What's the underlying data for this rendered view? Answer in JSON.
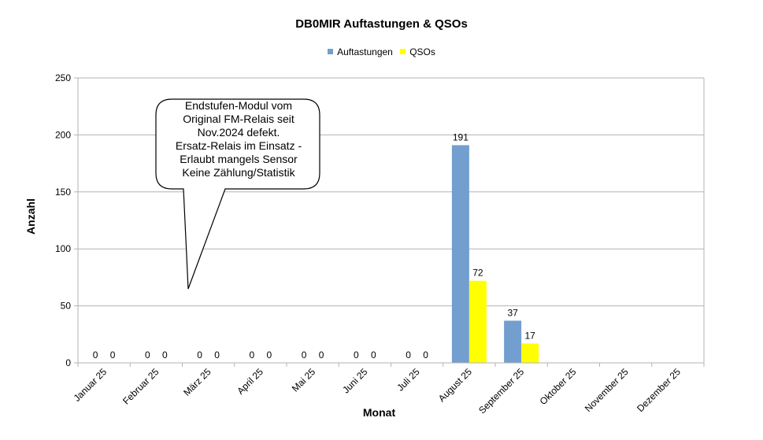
{
  "chart_data": {
    "type": "bar",
    "title": "DB0MIR Auftastungen & QSOs",
    "xlabel": "Monat",
    "ylabel": "Anzahl",
    "ylim": [
      0,
      250
    ],
    "yticks": [
      0,
      50,
      100,
      150,
      200,
      250
    ],
    "grid": true,
    "legend_position": "top",
    "categories": [
      "Januar 25",
      "Februar 25",
      "März 25",
      "April 25",
      "Mai 25",
      "Juni 25",
      "Juli 25",
      "August 25",
      "September 25",
      "Oktober 25",
      "November 25",
      "Dezember 25"
    ],
    "series": [
      {
        "name": "Auftastungen",
        "color": "#729fcf",
        "values": [
          0,
          0,
          0,
          0,
          0,
          0,
          0,
          191,
          37,
          null,
          null,
          null
        ]
      },
      {
        "name": "QSOs",
        "color": "#ffff00",
        "values": [
          0,
          0,
          0,
          0,
          0,
          0,
          0,
          72,
          17,
          null,
          null,
          null
        ]
      }
    ],
    "annotation": {
      "lines": [
        "Endstufen-Modul vom",
        "Original FM-Relais seit",
        "Nov.2024 defekt.",
        "Ersatz-Relais im Einsatz -",
        "Erlaubt mangels Sensor",
        "Keine Zählung/Statistik"
      ]
    }
  }
}
